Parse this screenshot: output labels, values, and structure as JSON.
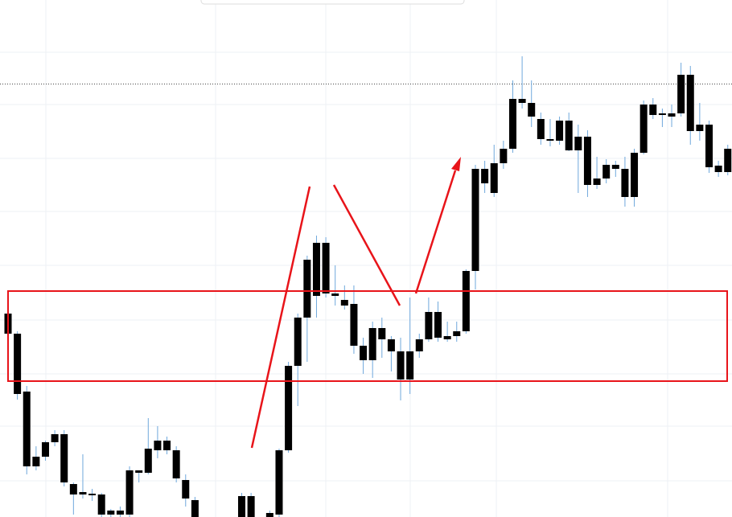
{
  "chart_data": {
    "type": "candlestick",
    "categories": [
      null,
      null,
      null,
      null,
      null,
      null,
      null,
      null,
      null,
      null,
      null,
      null,
      null,
      null,
      null,
      null,
      null,
      null,
      null,
      null,
      null,
      null,
      null,
      null,
      null,
      null,
      null,
      null,
      null,
      null,
      null,
      null,
      null,
      null,
      null,
      null,
      null,
      null,
      null,
      null,
      null,
      null,
      null,
      null,
      null,
      null,
      null,
      null,
      null,
      null,
      null,
      null,
      null,
      null,
      null,
      null,
      null,
      null,
      null,
      null,
      null,
      null,
      null,
      null,
      null,
      null,
      null,
      null,
      null,
      null,
      null,
      null,
      null,
      null,
      null,
      null,
      null,
      null
    ],
    "open": [
      253,
      228,
      156,
      63,
      75,
      93,
      103,
      41,
      28,
      29,
      28,
      8,
      3,
      3,
      58,
      55,
      83,
      95,
      83,
      46,
      21,
      null,
      null,
      null,
      null,
      0,
      26,
      null,
      0,
      3,
      83,
      188,
      248,
      275,
      341,
      278,
      270,
      265,
      213,
      195,
      235,
      221,
      206,
      171,
      206,
      221,
      255,
      225,
      225,
      231,
      306,
      433,
      403,
      440,
      458,
      520,
      515,
      495,
      470,
      468,
      493,
      456,
      473,
      421,
      421,
      433,
      433,
      398,
      453,
      513,
      502,
      498,
      502,
      550,
      488,
      488,
      437,
      429
    ],
    "high": [
      253,
      231,
      163,
      88,
      95,
      108,
      108,
      43,
      78,
      35,
      30,
      10,
      13,
      63,
      58,
      123,
      113,
      100,
      88,
      53,
      25,
      null,
      null,
      null,
      null,
      30,
      30,
      null,
      8,
      85,
      193,
      253,
      325,
      350,
      348,
      313,
      288,
      288,
      223,
      243,
      248,
      225,
      223,
      273,
      228,
      273,
      268,
      243,
      243,
      308,
      438,
      443,
      463,
      468,
      543,
      573,
      543,
      503,
      495,
      498,
      503,
      488,
      481,
      448,
      445,
      443,
      448,
      458,
      518,
      521,
      508,
      513,
      565,
      561,
      515,
      493,
      443,
      463
    ],
    "low": [
      228,
      146,
      53,
      58,
      70,
      88,
      38,
      3,
      23,
      20,
      0,
      0,
      0,
      0,
      43,
      53,
      73,
      78,
      43,
      13,
      0,
      null,
      null,
      null,
      null,
      0,
      0,
      null,
      0,
      0,
      80,
      138,
      193,
      248,
      273,
      263,
      258,
      203,
      178,
      173,
      198,
      181,
      145,
      153,
      198,
      218,
      218,
      218,
      218,
      228,
      283,
      403,
      398,
      433,
      453,
      508,
      485,
      463,
      461,
      463,
      455,
      403,
      398,
      408,
      415,
      423,
      386,
      386,
      451,
      495,
      485,
      485,
      498,
      463,
      468,
      428,
      423,
      425
    ],
    "close": [
      228,
      153,
      63,
      75,
      93,
      103,
      43,
      28,
      31,
      27,
      3,
      3,
      8,
      58,
      55,
      85,
      95,
      83,
      48,
      23,
      0,
      null,
      null,
      null,
      null,
      26,
      0,
      null,
      5,
      83,
      188,
      248,
      320,
      341,
      278,
      275,
      263,
      213,
      195,
      235,
      221,
      206,
      171,
      206,
      221,
      255,
      223,
      221,
      231,
      306,
      433,
      415,
      440,
      458,
      520,
      515,
      498,
      470,
      468,
      493,
      456,
      473,
      413,
      413,
      438,
      438,
      398,
      453,
      513,
      500,
      500,
      502,
      550,
      480,
      480,
      435,
      429,
      458
    ],
    "ylim": [
      0,
      643
    ],
    "color": "#000000",
    "wick_color": "#6fa8dc"
  }
}
